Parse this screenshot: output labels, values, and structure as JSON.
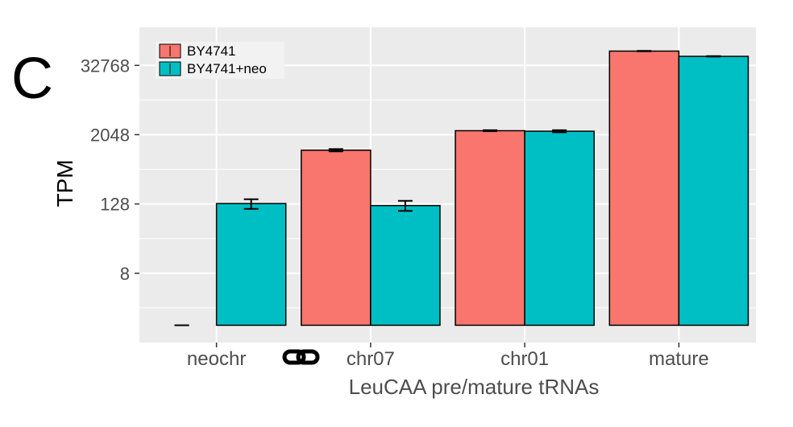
{
  "panel_label": "C",
  "chart_data": {
    "type": "bar",
    "title": "",
    "xlabel": "LeuCAA pre/mature tRNAs",
    "ylabel": "TPM",
    "y_scale": "log2",
    "ylim": [
      0.5,
      150000
    ],
    "y_ticks": [
      8,
      128,
      2048,
      32768
    ],
    "y_tick_labels": [
      "8",
      "128",
      "2048",
      "32768"
    ],
    "categories": [
      "neochr",
      "chr07",
      "chr01",
      "mature"
    ],
    "series": [
      {
        "name": "BY4741",
        "color": "#F8766D",
        "values": [
          1,
          1100,
          2400,
          58000
        ],
        "err_low": [
          1,
          1050,
          2350,
          57500
        ],
        "err_high": [
          1,
          1150,
          2450,
          58500
        ]
      },
      {
        "name": "BY4741+neo",
        "color": "#00BFC4",
        "values": [
          130,
          120,
          2350,
          47000
        ],
        "err_low": [
          105,
          97,
          2250,
          46500
        ],
        "err_high": [
          155,
          145,
          2450,
          47500
        ]
      }
    ],
    "grid": true,
    "legend_position": "top-left"
  },
  "colors": {
    "panel_background": "#EBEBEB",
    "grid": "#FFFFFF",
    "bar_outline": "#000000"
  },
  "decoration": {
    "name": "link-icon",
    "glyph": "🔗"
  }
}
